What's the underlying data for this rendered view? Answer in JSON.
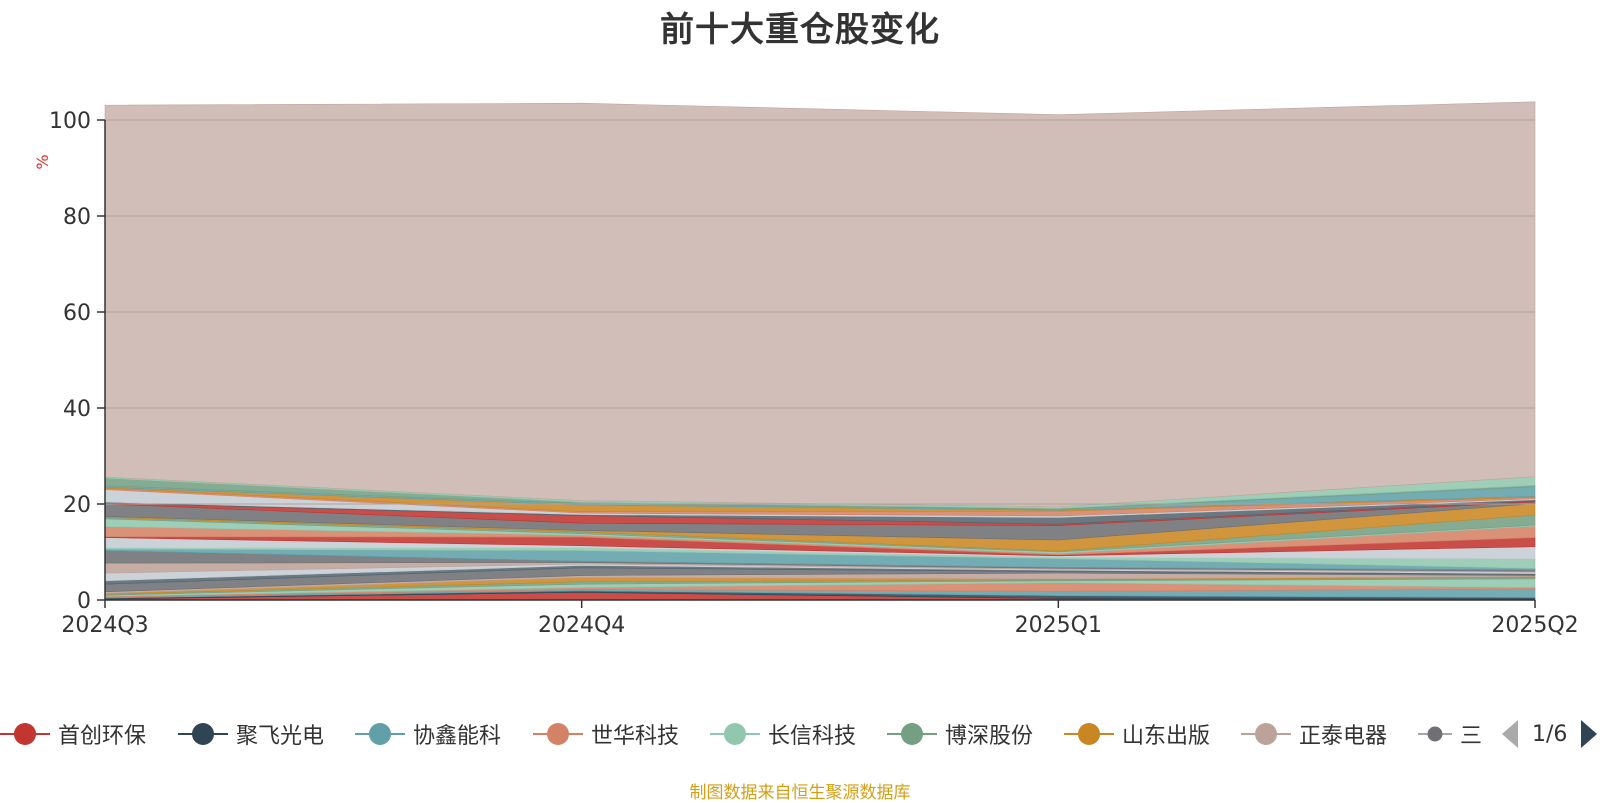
{
  "title": "前十大重仓股变化",
  "source_note": "制图数据来自恒生聚源数据库",
  "legend_page": "1/6",
  "legend_items": [
    {
      "label": "首创环保",
      "color": "#c23531"
    },
    {
      "label": "聚飞光电",
      "color": "#2f4554"
    },
    {
      "label": "协鑫能科",
      "color": "#61a0a8"
    },
    {
      "label": "世华科技",
      "color": "#d48265"
    },
    {
      "label": "长信科技",
      "color": "#91c7ae"
    },
    {
      "label": "博深股份",
      "color": "#749f83"
    },
    {
      "label": "山东出版",
      "color": "#ca8622"
    },
    {
      "label": "正泰电器",
      "color": "#bda29a"
    },
    {
      "label": "三",
      "color": "#6e7074"
    }
  ],
  "chart_data": {
    "type": "area",
    "stacked": true,
    "x": [
      "2024Q3",
      "2024Q4",
      "2025Q1",
      "2025Q2"
    ],
    "ylabel": "%",
    "ylim": [
      0,
      100
    ],
    "yticks": [
      0,
      20,
      40,
      60,
      80,
      100
    ],
    "grid": true,
    "series": [
      {
        "name": "首创环保",
        "color": "#c23531",
        "values": [
          0.2,
          1.6,
          0.3,
          0.2
        ]
      },
      {
        "name": "聚飞光电",
        "color": "#2f4554",
        "values": [
          0.2,
          0.3,
          0.6,
          0.3
        ]
      },
      {
        "name": "协鑫能科",
        "color": "#61a0a8",
        "values": [
          0.2,
          0.3,
          0.9,
          1.8
        ]
      },
      {
        "name": "世华科技",
        "color": "#d48265",
        "values": [
          0.2,
          0.4,
          1.8,
          0.3
        ]
      },
      {
        "name": "长信科技",
        "color": "#91c7ae",
        "values": [
          0.2,
          0.7,
          0.4,
          1.8
        ]
      },
      {
        "name": "博深股份",
        "color": "#749f83",
        "values": [
          0.2,
          0.5,
          0.2,
          0.3
        ]
      },
      {
        "name": "山东出版",
        "color": "#ca8622",
        "values": [
          0.2,
          0.9,
          0.2,
          0.2
        ]
      },
      {
        "name": "正泰电器",
        "color": "#bda29a",
        "values": [
          0.3,
          0.4,
          1.2,
          0.2
        ]
      },
      {
        "name": "三",
        "color": "#6e7074",
        "values": [
          1.6,
          1.6,
          0.3,
          0.2
        ]
      },
      {
        "name": "",
        "color": "#546570",
        "values": [
          0.7,
          0.5,
          0.3,
          0.2
        ]
      },
      {
        "name": "",
        "color": "#c4ccd3",
        "values": [
          1.6,
          0.3,
          0.2,
          0.3
        ]
      },
      {
        "name": "",
        "color": "#bda29a",
        "values": [
          2.1,
          0.3,
          0.2,
          0.2
        ]
      },
      {
        "name": "",
        "color": "#6e7074",
        "values": [
          2.6,
          0.3,
          0.2,
          0.3
        ]
      },
      {
        "name": "",
        "color": "#61a0a8",
        "values": [
          0.3,
          2.2,
          1.8,
          0.3
        ]
      },
      {
        "name": "",
        "color": "#91c7ae",
        "values": [
          0.3,
          0.6,
          0.3,
          2.0
        ]
      },
      {
        "name": "",
        "color": "#c4ccd3",
        "values": [
          2.1,
          0.4,
          0.3,
          2.5
        ]
      },
      {
        "name": "",
        "color": "#c23531",
        "values": [
          0.2,
          1.8,
          0.2,
          1.9
        ]
      },
      {
        "name": "",
        "color": "#d48265",
        "values": [
          2.1,
          0.4,
          0.3,
          2.4
        ]
      },
      {
        "name": "",
        "color": "#91c7ae",
        "values": [
          1.6,
          0.3,
          0.3,
          0.2
        ]
      },
      {
        "name": "",
        "color": "#749f83",
        "values": [
          0.3,
          0.4,
          0.2,
          2.1
        ]
      },
      {
        "name": "",
        "color": "#ca8622",
        "values": [
          0.2,
          0.3,
          2.3,
          2.4
        ]
      },
      {
        "name": "",
        "color": "#6e7074",
        "values": [
          2.6,
          1.5,
          3.0,
          0.3
        ]
      },
      {
        "name": "",
        "color": "#c23531",
        "values": [
          0.2,
          1.6,
          0.3,
          0.2
        ]
      },
      {
        "name": "",
        "color": "#546570",
        "values": [
          0.2,
          0.2,
          1.4,
          0.3
        ]
      },
      {
        "name": "",
        "color": "#c4ccd3",
        "values": [
          2.6,
          0.3,
          0.3,
          0.2
        ]
      },
      {
        "name": "",
        "color": "#d48265",
        "values": [
          0.3,
          0.3,
          1.0,
          0.3
        ]
      },
      {
        "name": "",
        "color": "#ca8622",
        "values": [
          0.2,
          1.4,
          0.2,
          0.2
        ]
      },
      {
        "name": "",
        "color": "#61a0a8",
        "values": [
          0.3,
          0.3,
          0.2,
          2.0
        ]
      },
      {
        "name": "",
        "color": "#749f83",
        "values": [
          1.6,
          0.3,
          0.2,
          0.3
        ]
      },
      {
        "name": "",
        "color": "#91c7ae",
        "values": [
          0.2,
          0.3,
          0.3,
          1.8
        ]
      },
      {
        "name": "",
        "color": "#bfa59c",
        "values": [
          77.5,
          82.8,
          81.7,
          78.1
        ]
      }
    ]
  }
}
